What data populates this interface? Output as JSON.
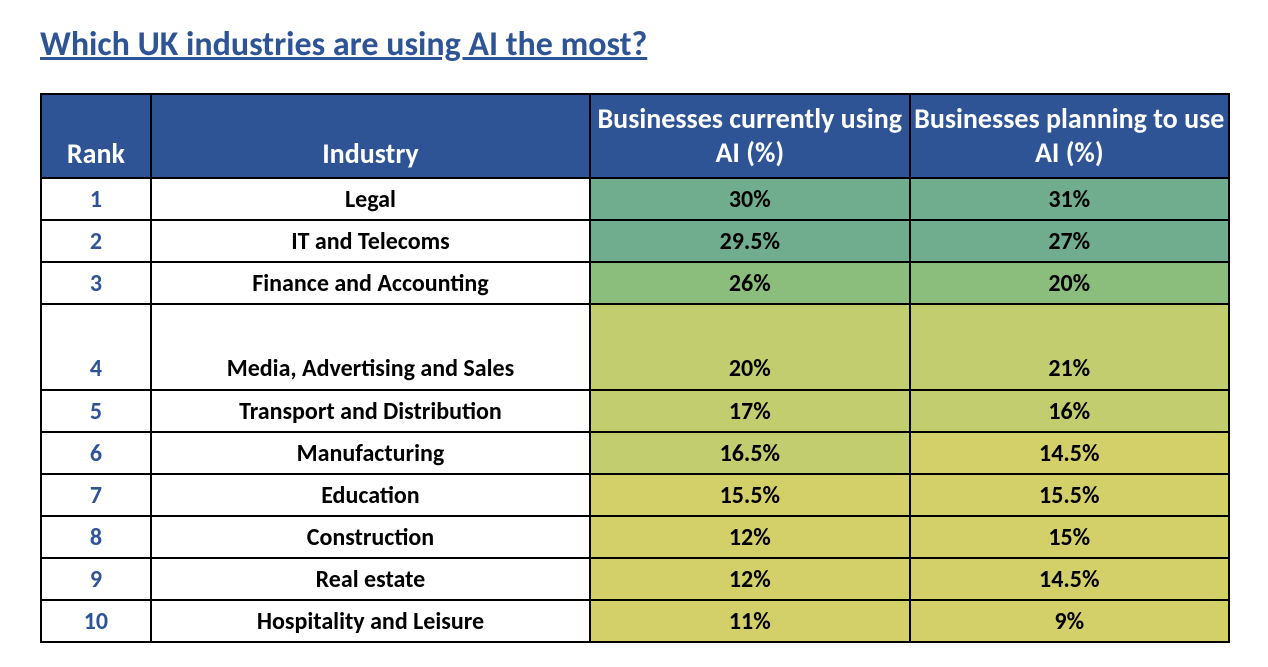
{
  "title": "Which UK industries are using AI the most?",
  "table": {
    "columns": {
      "rank": "Rank",
      "industry": "Industry",
      "current": "Businesses currently using AI (%)",
      "planning": "Businesses planning to use AI (%)"
    },
    "header_bg": "#2f5496",
    "header_color": "#ffffff",
    "border_color": "#000000",
    "rank_color": "#2f5496",
    "cell_text_color": "#000000",
    "cell_fontsize": 24,
    "header_fontsize": 28,
    "colors": {
      "dark_green": "#70ad8e",
      "mid_green": "#8bbd7c",
      "olive": "#c2cd6f",
      "yellow": "#d3d06a"
    },
    "rows": [
      {
        "rank": "1",
        "industry": "Legal",
        "current": "30%",
        "planning": "31%",
        "c_color": "dark_green",
        "p_color": "dark_green",
        "tall": false
      },
      {
        "rank": "2",
        "industry": "IT and Telecoms",
        "current": "29.5%",
        "planning": "27%",
        "c_color": "dark_green",
        "p_color": "dark_green",
        "tall": false
      },
      {
        "rank": "3",
        "industry": "Finance and Accounting",
        "current": "26%",
        "planning": "20%",
        "c_color": "mid_green",
        "p_color": "mid_green",
        "tall": false
      },
      {
        "rank": "4",
        "industry": "Media, Advertising and Sales",
        "current": "20%",
        "planning": "21%",
        "c_color": "olive",
        "p_color": "olive",
        "tall": true
      },
      {
        "rank": "5",
        "industry": "Transport and Distribution",
        "current": "17%",
        "planning": "16%",
        "c_color": "olive",
        "p_color": "olive",
        "tall": false
      },
      {
        "rank": "6",
        "industry": "Manufacturing",
        "current": "16.5%",
        "planning": "14.5%",
        "c_color": "olive",
        "p_color": "yellow",
        "tall": false
      },
      {
        "rank": "7",
        "industry": "Education",
        "current": "15.5%",
        "planning": "15.5%",
        "c_color": "yellow",
        "p_color": "yellow",
        "tall": false
      },
      {
        "rank": "8",
        "industry": "Construction",
        "current": "12%",
        "planning": "15%",
        "c_color": "yellow",
        "p_color": "yellow",
        "tall": false
      },
      {
        "rank": "9",
        "industry": "Real estate",
        "current": "12%",
        "planning": "14.5%",
        "c_color": "yellow",
        "p_color": "yellow",
        "tall": false
      },
      {
        "rank": "10",
        "industry": "Hospitality and Leisure",
        "current": "11%",
        "planning": "9%",
        "c_color": "yellow",
        "p_color": "yellow",
        "tall": false
      }
    ]
  }
}
